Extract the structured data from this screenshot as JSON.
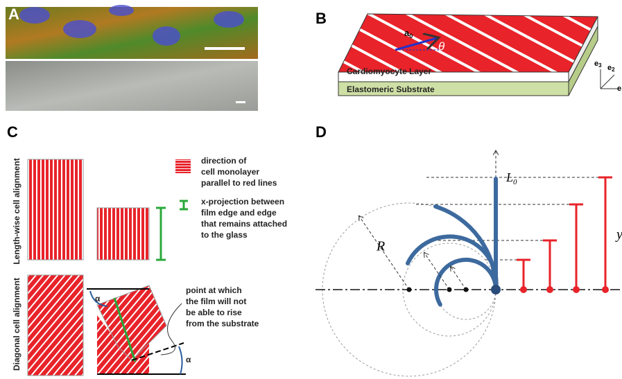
{
  "panels": {
    "a": {
      "label": "A"
    },
    "b": {
      "label": "B",
      "layer": "Cardiomyocyte Layer",
      "substrate": "Elastomeric Substrate",
      "vector": "a",
      "vector_sub": "0",
      "angle": "θ",
      "axes": [
        "e",
        "3",
        "e",
        "2",
        "e"
      ]
    },
    "c": {
      "label": "C",
      "row_labels": [
        "Length-wise cell alignment",
        "Diagonal cell alignment"
      ],
      "legend_direction": [
        "direction of",
        "cell  monolayer",
        "parallel to red lines"
      ],
      "legend_projection": [
        "x-projection between",
        "film edge and edge",
        "that remains attached",
        "to the glass"
      ],
      "note": [
        "point at which",
        "the film will not",
        "be able to rise",
        " from the substrate"
      ],
      "alpha_top": "α",
      "alpha_bottom": "α"
    },
    "d": {
      "label": "D",
      "length": "L",
      "length_sub": "0",
      "radius": "R",
      "y": "y"
    }
  }
}
